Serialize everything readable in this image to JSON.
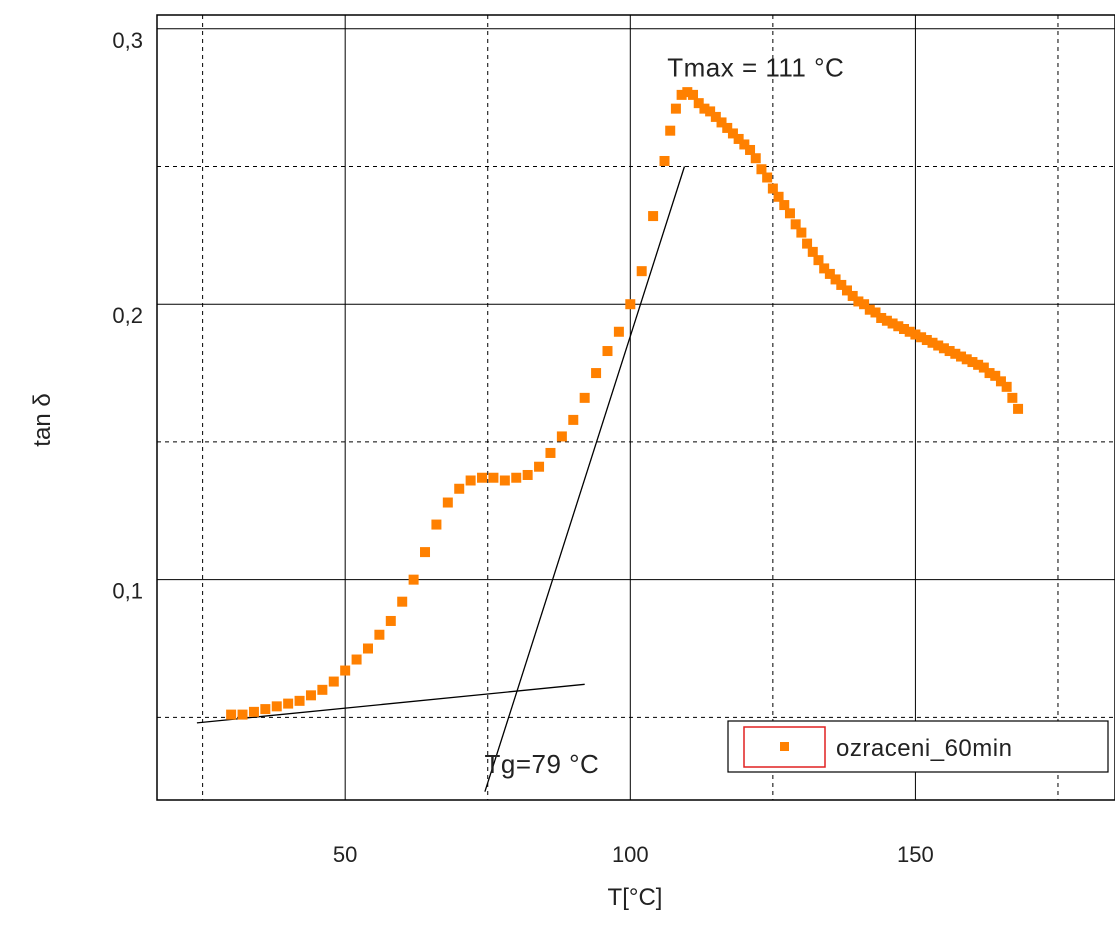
{
  "chart_data": {
    "type": "scatter",
    "title": "",
    "xlabel": "T[°C]",
    "ylabel": "tan δ",
    "xlim": [
      17,
      185
    ],
    "ylim": [
      0.02,
      0.305
    ],
    "x_major_ticks": [
      50,
      100,
      150
    ],
    "x_tick_labels": [
      "50",
      "100",
      "150"
    ],
    "x_minor_ticks": [
      25,
      75,
      125,
      175
    ],
    "y_major_ticks": [
      0.1,
      0.2,
      0.3
    ],
    "y_tick_labels": [
      "0,1",
      "0,2",
      "0,3"
    ],
    "y_minor_ticks": [
      0.05,
      0.15,
      0.25
    ],
    "grid": {
      "major": "solid",
      "minor": "dashed"
    },
    "legend": {
      "position": "bottom-right"
    },
    "series": [
      {
        "name": "ozraceni_60min",
        "color": "#ff8000",
        "marker": "square",
        "x": [
          30,
          32,
          34,
          36,
          38,
          40,
          42,
          44,
          46,
          48,
          50,
          52,
          54,
          56,
          58,
          60,
          62,
          64,
          66,
          68,
          70,
          72,
          74,
          76,
          78,
          80,
          82,
          84,
          86,
          88,
          90,
          92,
          94,
          96,
          98,
          100,
          102,
          104,
          106,
          107,
          108,
          109,
          110,
          111,
          112,
          113,
          114,
          115,
          116,
          117,
          118,
          119,
          120,
          121,
          122,
          123,
          124,
          125,
          126,
          127,
          128,
          129,
          130,
          131,
          132,
          133,
          134,
          135,
          136,
          137,
          138,
          139,
          140,
          141,
          142,
          143,
          144,
          145,
          146,
          147,
          148,
          149,
          150,
          151,
          152,
          153,
          154,
          155,
          156,
          157,
          158,
          159,
          160,
          161,
          162,
          163,
          164,
          165,
          166,
          167,
          168
        ],
        "y": [
          0.051,
          0.051,
          0.052,
          0.053,
          0.054,
          0.055,
          0.056,
          0.058,
          0.06,
          0.063,
          0.067,
          0.071,
          0.075,
          0.08,
          0.085,
          0.092,
          0.1,
          0.11,
          0.12,
          0.128,
          0.133,
          0.136,
          0.137,
          0.137,
          0.136,
          0.137,
          0.138,
          0.141,
          0.146,
          0.152,
          0.158,
          0.166,
          0.175,
          0.183,
          0.19,
          0.2,
          0.212,
          0.232,
          0.252,
          0.263,
          0.271,
          0.276,
          0.277,
          0.276,
          0.273,
          0.271,
          0.27,
          0.268,
          0.266,
          0.264,
          0.262,
          0.26,
          0.258,
          0.256,
          0.253,
          0.249,
          0.246,
          0.242,
          0.239,
          0.236,
          0.233,
          0.229,
          0.226,
          0.222,
          0.219,
          0.216,
          0.213,
          0.211,
          0.209,
          0.207,
          0.205,
          0.203,
          0.201,
          0.2,
          0.198,
          0.197,
          0.195,
          0.194,
          0.193,
          0.192,
          0.191,
          0.19,
          0.189,
          0.188,
          0.187,
          0.186,
          0.185,
          0.184,
          0.183,
          0.182,
          0.181,
          0.18,
          0.179,
          0.178,
          0.177,
          0.175,
          0.174,
          0.172,
          0.17,
          0.166,
          0.162
        ]
      }
    ],
    "tangent_lines": [
      {
        "x": [
          24,
          92
        ],
        "y": [
          0.048,
          0.062
        ]
      },
      {
        "x": [
          74.5,
          109.5
        ],
        "y": [
          0.023,
          0.25
        ]
      }
    ],
    "annotations": [
      {
        "text": "Tmax = 111 °C",
        "x": 122,
        "y": 0.286
      },
      {
        "text": "Tg=79 °C",
        "x": 84.5,
        "y": 0.033
      }
    ]
  }
}
